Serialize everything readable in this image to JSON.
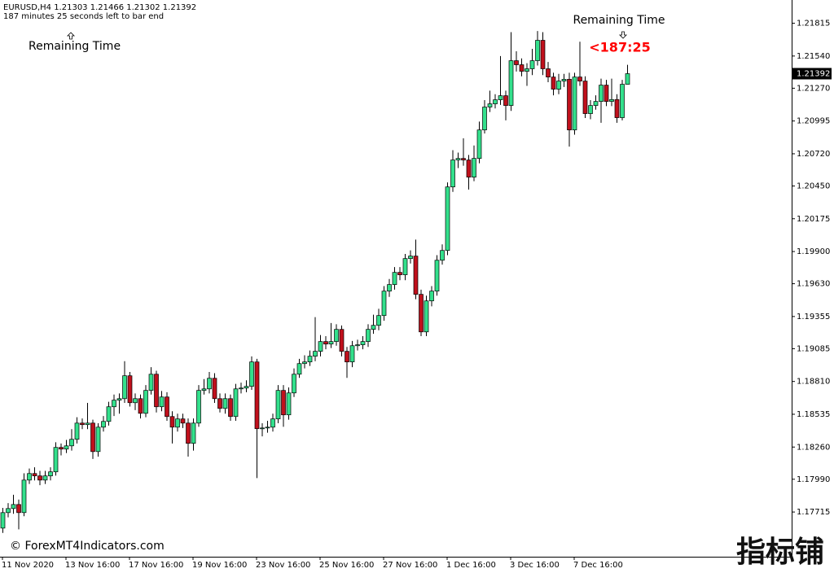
{
  "chart_data": {
    "type": "candlestick",
    "header": "EURUSD,H4  1.21303 1.21466 1.21302 1.21392",
    "countdown": "187 minutes 25 seconds left to bar end",
    "annotation_left": "Remaining Time",
    "annotation_right": "Remaining Time",
    "timer": "<187:25",
    "watermark": "© ForexMT4Indicators.com",
    "logo": "指标铺",
    "bull_color": "#33e08c",
    "bear_color": "#c0101c",
    "timer_color": "#ff0000",
    "grid": false,
    "ylim": [
      1.1734,
      1.2201
    ],
    "yticks": [
      1.21815,
      {
        "value": 1.2154,
        "label": "1.21540"
      },
      {
        "value": 1.2127,
        "label": "1.21270"
      },
      1.20995,
      {
        "value": 1.2072,
        "label": "1.20720"
      },
      {
        "value": 1.2045,
        "label": "1.20450"
      },
      1.20175,
      {
        "value": 1.199,
        "label": "1.19900"
      },
      {
        "value": 1.1963,
        "label": "1.19630"
      },
      1.19355,
      1.19085,
      {
        "value": 1.1881,
        "label": "1.18810"
      },
      1.18535,
      {
        "value": 1.1826,
        "label": "1.18260"
      },
      {
        "value": 1.1799,
        "label": "1.17990"
      },
      1.17715
    ],
    "x": [
      "11 Nov 2020",
      null,
      null,
      null,
      null,
      null,
      null,
      null,
      null,
      null,
      null,
      null,
      "13 Nov 16:00",
      null,
      null,
      null,
      null,
      null,
      null,
      null,
      null,
      null,
      null,
      null,
      "17 Nov 16:00",
      null,
      null,
      null,
      null,
      null,
      null,
      null,
      null,
      null,
      null,
      null,
      "19 Nov 16:00",
      null,
      null,
      null,
      null,
      null,
      null,
      null,
      null,
      null,
      null,
      null,
      "23 Nov 16:00",
      null,
      null,
      null,
      null,
      null,
      null,
      null,
      null,
      null,
      null,
      null,
      "25 Nov 16:00",
      null,
      null,
      null,
      null,
      null,
      null,
      null,
      null,
      null,
      null,
      null,
      "27 Nov 16:00",
      null,
      null,
      null,
      null,
      null,
      null,
      null,
      null,
      null,
      null,
      null,
      "1 Dec 16:00",
      null,
      null,
      null,
      null,
      null,
      null,
      null,
      null,
      null,
      null,
      null,
      "3 Dec 16:00",
      null,
      null,
      null,
      null,
      null,
      null,
      null,
      null,
      null,
      null,
      null,
      "7 Dec 16:00",
      null,
      null,
      null,
      null,
      null,
      null,
      null,
      null,
      null,
      null
    ],
    "open": [
      1.1758,
      1.1771,
      1.17744,
      1.17778,
      1.1771,
      1.17983,
      1.18038,
      1.18018,
      1.17983,
      1.18018,
      1.18052,
      1.18257,
      1.18243,
      1.1827,
      1.18325,
      1.18461,
      1.18448,
      1.18461,
      1.18222,
      1.18427,
      1.18475,
      1.18598,
      1.18653,
      1.18666,
      1.18858,
      1.18632,
      1.18666,
      1.18543,
      1.18735,
      1.18871,
      1.18598,
      1.1868,
      1.18516,
      1.18427,
      1.18496,
      1.18461,
      1.18291,
      1.18461,
      1.18735,
      1.18748,
      1.18837,
      1.18666,
      1.18584,
      1.18666,
      1.18516,
      1.18748,
      1.18755,
      1.18769,
      1.18974,
      1.18414,
      1.1842,
      1.18427,
      1.18496,
      1.18735,
      1.1853,
      1.18714,
      1.18871,
      1.1896,
      1.18974,
      1.19022,
      1.19063,
      1.19145,
      1.19124,
      1.19145,
      1.19247,
      1.19063,
      1.18974,
      1.1911,
      1.19118,
      1.19145,
      1.19247,
      1.19281,
      1.19363,
      1.19568,
      1.19623,
      1.19725,
      1.19705,
      1.19841,
      1.19862,
      1.19541,
      1.19226,
      1.19486,
      1.19568,
      1.19827,
      1.19909,
      1.20442,
      1.20668,
      1.20681,
      1.20668,
      1.20524,
      1.20681,
      1.2092,
      1.21112,
      1.21139,
      1.21173,
      1.21207,
      1.21125,
      1.21501,
      1.21467,
      1.21412,
      1.21433,
      1.21501,
      1.21672,
      1.21433,
      1.21364,
      1.21262,
      1.2133,
      1.21345,
      1.2092,
      1.21364,
      1.2133,
      1.21057,
      1.21125,
      1.21159,
      1.21296,
      1.21159,
      1.21175,
      1.21023,
      1.21303
    ],
    "high": [
      1.1775,
      1.1779,
      1.1786,
      1.1782,
      1.1804,
      1.1808,
      1.1809,
      1.1806,
      1.1806,
      1.1809,
      1.183,
      1.1829,
      1.1832,
      1.1841,
      1.1851,
      1.185,
      1.1863,
      1.1849,
      1.1846,
      1.1852,
      1.1864,
      1.187,
      1.1871,
      1.1898,
      1.1889,
      1.1871,
      1.187,
      1.1878,
      1.1893,
      1.189,
      1.1873,
      1.1872,
      1.1856,
      1.1854,
      1.1854,
      1.185,
      1.185,
      1.1878,
      1.1883,
      1.1889,
      1.1888,
      1.1871,
      1.1871,
      1.187,
      1.1879,
      1.188,
      1.1882,
      1.1902,
      1.19,
      1.1846,
      1.1848,
      1.1854,
      1.1878,
      1.1878,
      1.1876,
      1.1892,
      1.19,
      1.1903,
      1.1907,
      1.1935,
      1.192,
      1.1919,
      1.193,
      1.1929,
      1.1928,
      1.191,
      1.1915,
      1.1916,
      1.1919,
      1.1929,
      1.1937,
      1.1942,
      1.1961,
      1.1967,
      1.1977,
      1.1977,
      1.1988,
      1.1991,
      1.2,
      1.1958,
      1.1953,
      1.1961,
      1.1987,
      1.1996,
      1.2048,
      1.2075,
      1.2073,
      1.2085,
      1.2071,
      1.2079,
      1.2099,
      1.2117,
      1.2125,
      1.2122,
      1.2154,
      1.2125,
      1.2174,
      1.2158,
      1.2152,
      1.2148,
      1.216,
      1.2175,
      1.2174,
      1.2149,
      1.214,
      1.2139,
      1.2139,
      1.214,
      1.214,
      1.2166,
      1.2137,
      1.2117,
      1.2121,
      1.2135,
      1.2134,
      1.2135,
      1.2122,
      1.2134,
      1.21466
    ],
    "low": [
      1.1754,
      1.1767,
      1.177,
      1.1757,
      1.1768,
      1.1795,
      1.1798,
      1.1794,
      1.1795,
      1.1798,
      1.1802,
      1.1819,
      1.1821,
      1.1823,
      1.1829,
      1.1841,
      1.1841,
      1.1816,
      1.1818,
      1.1839,
      1.1844,
      1.1852,
      1.1854,
      1.1863,
      1.186,
      1.1857,
      1.185,
      1.1851,
      1.187,
      1.1855,
      1.1856,
      1.1848,
      1.1829,
      1.1839,
      1.1842,
      1.1818,
      1.1823,
      1.1843,
      1.187,
      1.1871,
      1.1863,
      1.1855,
      1.1854,
      1.1848,
      1.1848,
      1.1871,
      1.1872,
      1.1874,
      1.18,
      1.1835,
      1.1838,
      1.1839,
      1.1846,
      1.1843,
      1.1849,
      1.1868,
      1.1884,
      1.1892,
      1.1894,
      1.1898,
      1.1902,
      1.1908,
      1.1909,
      1.1911,
      1.1902,
      1.1884,
      1.1893,
      1.1907,
      1.1908,
      1.191,
      1.1921,
      1.1924,
      1.1932,
      1.1952,
      1.1958,
      1.1966,
      1.1966,
      1.198,
      1.195,
      1.1919,
      1.1919,
      1.1944,
      1.1953,
      1.1979,
      1.1987,
      1.204,
      1.206,
      1.2062,
      1.2042,
      1.2049,
      1.2064,
      1.2089,
      1.2107,
      1.211,
      1.2113,
      1.21,
      1.2108,
      1.2141,
      1.2137,
      1.2129,
      1.2138,
      1.2146,
      1.2138,
      1.2132,
      1.2121,
      1.2122,
      1.2128,
      1.2078,
      1.2088,
      1.2129,
      1.2102,
      1.2101,
      1.2109,
      1.2098,
      1.2112,
      1.2112,
      1.2098,
      1.21,
      1.21302
    ],
    "close": [
      1.1771,
      1.17744,
      1.17778,
      1.1771,
      1.17983,
      1.18038,
      1.18018,
      1.17983,
      1.18018,
      1.18052,
      1.18257,
      1.18243,
      1.1827,
      1.18325,
      1.18461,
      1.18448,
      1.18461,
      1.18222,
      1.18427,
      1.18475,
      1.18598,
      1.18653,
      1.18666,
      1.18858,
      1.18632,
      1.18666,
      1.18543,
      1.18735,
      1.18871,
      1.18598,
      1.1868,
      1.18516,
      1.18427,
      1.18496,
      1.18461,
      1.18291,
      1.18461,
      1.18735,
      1.18748,
      1.18837,
      1.18666,
      1.18584,
      1.18666,
      1.18516,
      1.18748,
      1.18755,
      1.18769,
      1.18974,
      1.18414,
      1.1842,
      1.18427,
      1.18496,
      1.18735,
      1.1853,
      1.18714,
      1.18871,
      1.1896,
      1.18974,
      1.19022,
      1.19063,
      1.19145,
      1.19124,
      1.19145,
      1.19247,
      1.19063,
      1.18974,
      1.1911,
      1.19118,
      1.19145,
      1.19247,
      1.19281,
      1.19363,
      1.19568,
      1.19623,
      1.19725,
      1.19705,
      1.19841,
      1.19862,
      1.19541,
      1.19226,
      1.19486,
      1.19568,
      1.19827,
      1.19909,
      1.20442,
      1.20668,
      1.20681,
      1.20668,
      1.20524,
      1.20681,
      1.2092,
      1.21112,
      1.21139,
      1.21173,
      1.21207,
      1.21125,
      1.21501,
      1.21467,
      1.21412,
      1.21433,
      1.21501,
      1.21672,
      1.21433,
      1.21364,
      1.21262,
      1.2133,
      1.21345,
      1.2092,
      1.21364,
      1.2133,
      1.21057,
      1.21125,
      1.21159,
      1.21296,
      1.21159,
      1.21175,
      1.21023,
      1.21303,
      1.21392
    ]
  }
}
